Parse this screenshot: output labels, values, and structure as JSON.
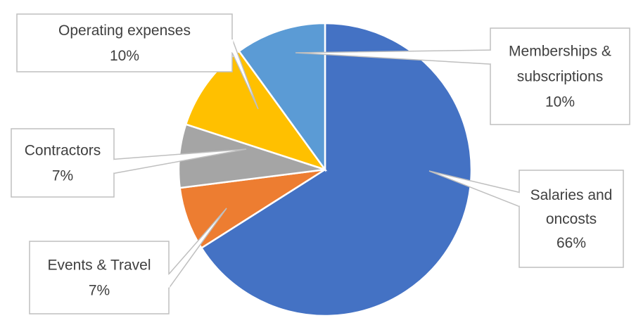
{
  "chart_data": {
    "type": "pie",
    "title": "",
    "start_angle_deg": 0,
    "direction": "clockwise",
    "slices": [
      {
        "label": "Salaries and oncosts",
        "value": 66,
        "display": "66%",
        "color": "#4472C4",
        "label_lines": [
          "Salaries and",
          "oncosts",
          "66%"
        ]
      },
      {
        "label": "Events & Travel",
        "value": 7,
        "display": "7%",
        "color": "#ED7D31",
        "label_lines": [
          "Events & Travel",
          "7%"
        ]
      },
      {
        "label": "Contractors",
        "value": 7,
        "display": "7%",
        "color": "#A5A5A5",
        "label_lines": [
          "Contractors",
          "7%"
        ]
      },
      {
        "label": "Operating expenses",
        "value": 10,
        "display": "10%",
        "color": "#FFC000",
        "label_lines": [
          "Operating expenses",
          "10%"
        ]
      },
      {
        "label": "Memberships & subscriptions",
        "value": 10,
        "display": "10%",
        "color": "#5B9BD5",
        "label_lines": [
          "Memberships &",
          "subscriptions",
          "10%"
        ]
      }
    ],
    "legend": "none",
    "data_labels": "callouts"
  }
}
